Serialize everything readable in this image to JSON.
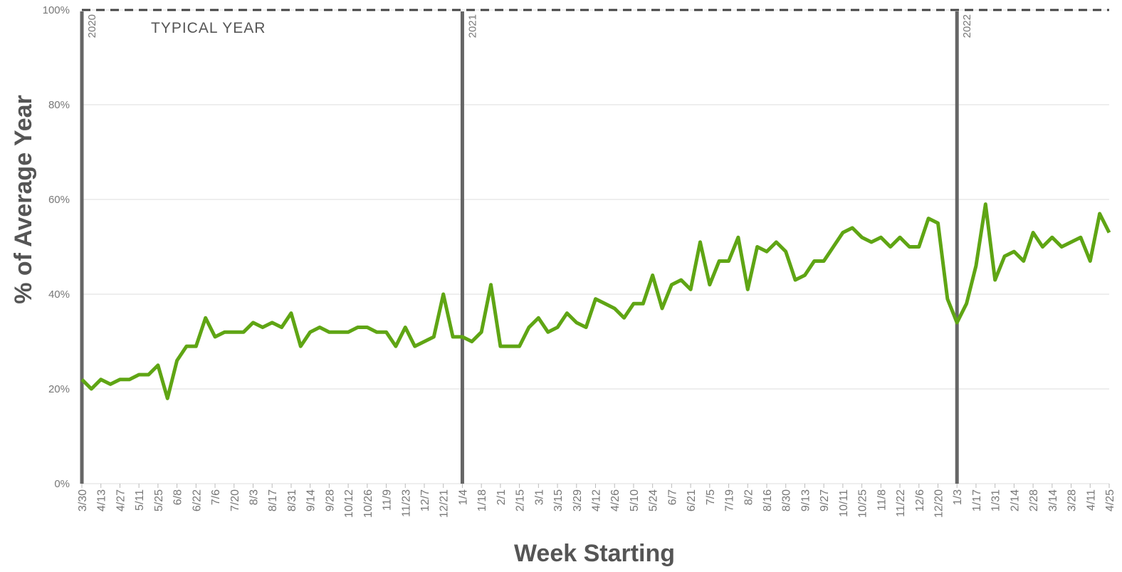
{
  "chart_data": {
    "type": "line",
    "x_label": "Week Starting",
    "y_label": "% of Average Year",
    "categories": [
      "3/30",
      null,
      "4/13",
      null,
      "4/27",
      null,
      "5/11",
      null,
      "5/25",
      null,
      "6/8",
      null,
      "6/22",
      null,
      "7/6",
      null,
      "7/20",
      null,
      "8/3",
      null,
      "8/17",
      null,
      "8/31",
      null,
      "9/14",
      null,
      "9/28",
      null,
      "10/12",
      null,
      "10/26",
      null,
      "11/9",
      null,
      "11/23",
      null,
      "12/7",
      null,
      "12/21",
      null,
      "1/4",
      null,
      "1/18",
      null,
      "2/1",
      null,
      "2/15",
      null,
      "3/1",
      null,
      "3/15",
      null,
      "3/29",
      null,
      "4/12",
      null,
      "4/26",
      null,
      "5/10",
      null,
      "5/24",
      null,
      "6/7",
      null,
      "6/21",
      null,
      "7/5",
      null,
      "7/19",
      null,
      "8/2",
      null,
      "8/16",
      null,
      "8/30",
      null,
      "9/13",
      null,
      "9/27",
      null,
      "10/11",
      null,
      "10/25",
      null,
      "11/8",
      null,
      "11/22",
      null,
      "12/6",
      null,
      "12/20",
      null,
      "1/3",
      null,
      "1/17",
      null,
      "1/31",
      null,
      "2/14",
      null,
      "2/28",
      null,
      "3/14",
      null,
      "3/28",
      null,
      "4/11",
      null,
      "4/25"
    ],
    "values": [
      22,
      20,
      22,
      21,
      22,
      22,
      23,
      23,
      25,
      18,
      26,
      29,
      29,
      35,
      31,
      32,
      32,
      32,
      34,
      33,
      34,
      33,
      36,
      29,
      32,
      33,
      32,
      32,
      32,
      33,
      33,
      32,
      32,
      29,
      33,
      29,
      30,
      31,
      40,
      31,
      31,
      30,
      32,
      42,
      29,
      29,
      29,
      33,
      35,
      32,
      33,
      36,
      34,
      33,
      39,
      38,
      37,
      35,
      38,
      38,
      44,
      37,
      42,
      43,
      41,
      51,
      42,
      47,
      47,
      52,
      41,
      50,
      49,
      51,
      49,
      43,
      44,
      47,
      47,
      50,
      53,
      54,
      52,
      51,
      52,
      50,
      52,
      50,
      50,
      56,
      55,
      39,
      34,
      38,
      46,
      59,
      43,
      48,
      49,
      47,
      53,
      50,
      52,
      50,
      51,
      52,
      47,
      57,
      53
    ],
    "color": "#5fa514",
    "ylim": [
      0,
      100
    ],
    "yticks": [
      {
        "value": 0,
        "label": "0%"
      },
      {
        "value": 20,
        "label": "20%"
      },
      {
        "value": 40,
        "label": "40%"
      },
      {
        "value": 60,
        "label": "60%"
      },
      {
        "value": 80,
        "label": "80%"
      },
      {
        "value": 100,
        "label": "100%"
      }
    ],
    "grid": true,
    "reference_line": {
      "value": 100,
      "label": "TYPICAL YEAR"
    },
    "year_markers": [
      {
        "label": "2020",
        "at": "3/30"
      },
      {
        "label": "2021",
        "at": "1/4"
      },
      {
        "label": "2022",
        "at": "1/3"
      }
    ]
  }
}
